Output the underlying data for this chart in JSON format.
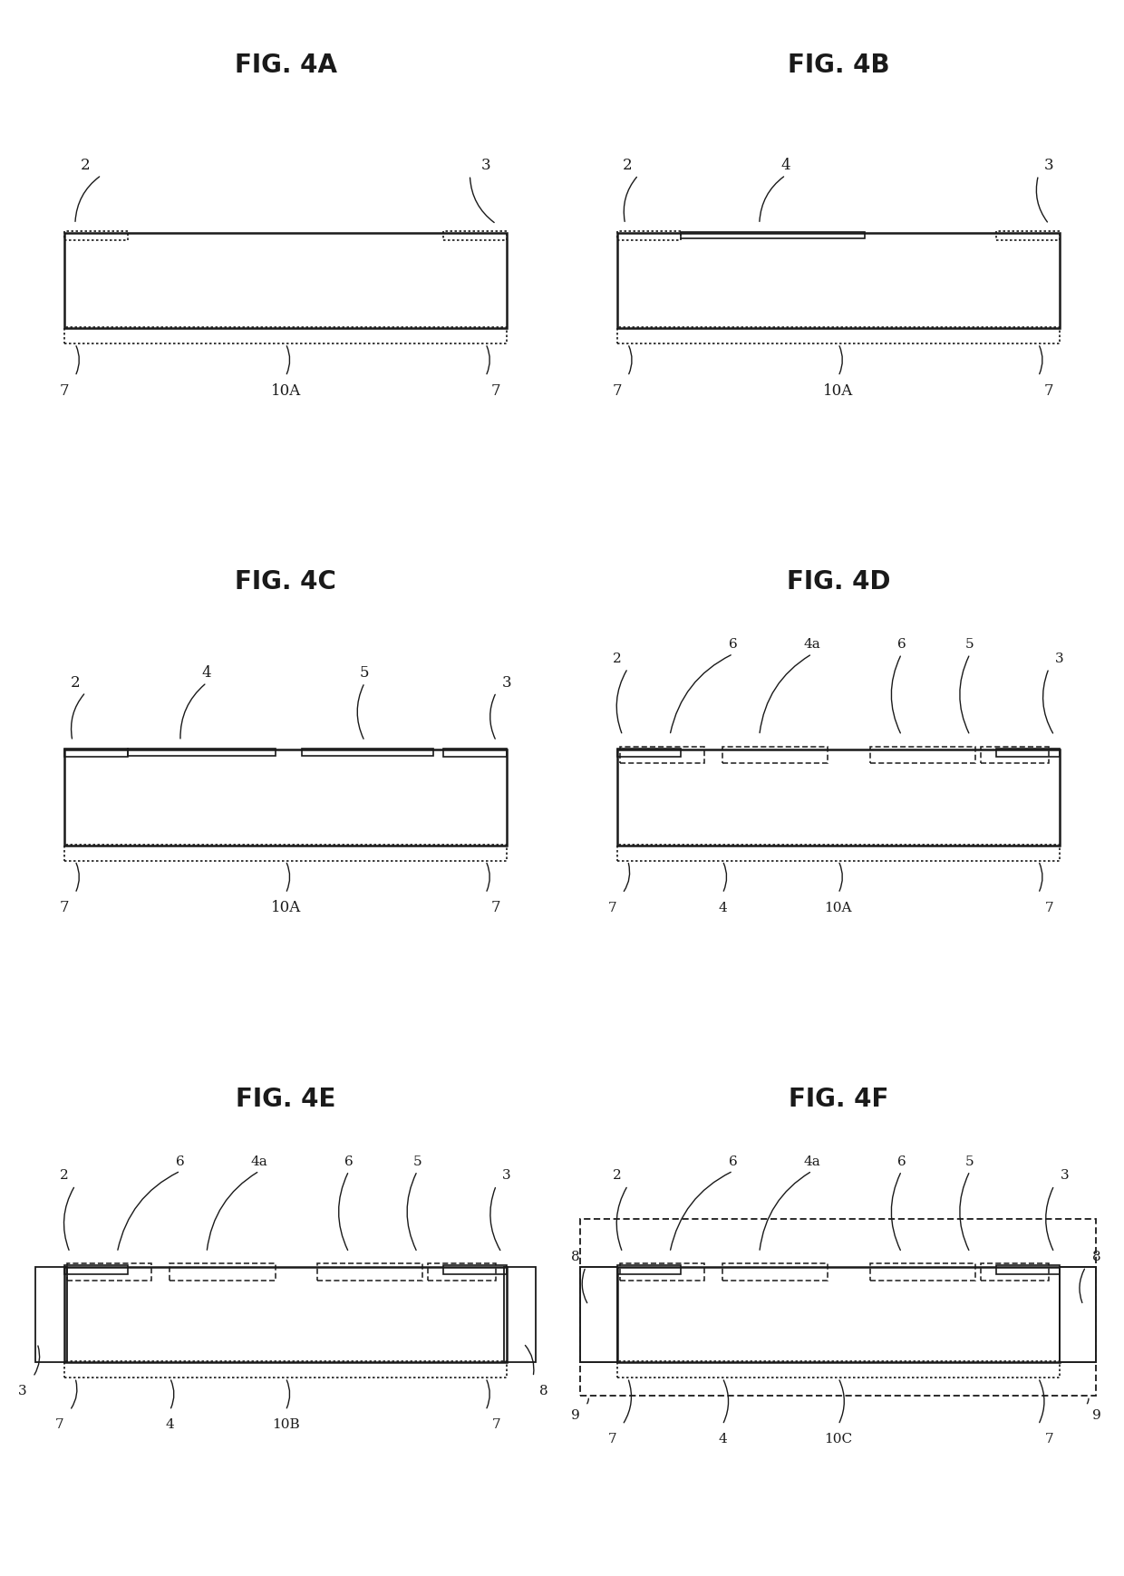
{
  "bg_color": "#ffffff",
  "lc": "#1a1a1a",
  "figures": [
    {
      "label": "FIG. 4A",
      "col": 0,
      "row": 0
    },
    {
      "label": "FIG. 4B",
      "col": 0,
      "row": 1
    },
    {
      "label": "FIG. 4C",
      "col": 0,
      "row": 2
    },
    {
      "label": "FIG. 4D",
      "col": 1,
      "row": 0
    },
    {
      "label": "FIG. 4E",
      "col": 1,
      "row": 1
    },
    {
      "label": "FIG. 4F",
      "col": 1,
      "row": 2
    }
  ]
}
